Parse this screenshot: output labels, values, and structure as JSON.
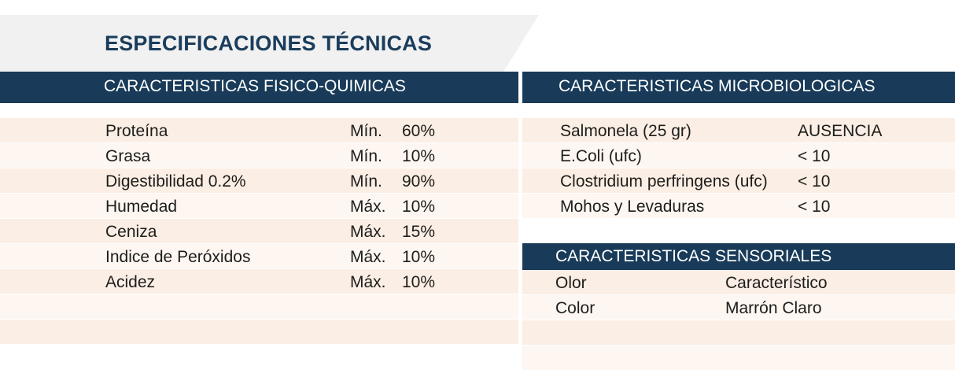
{
  "title": "ESPECIFICACIONES TÉCNICAS",
  "fisico_quimicas": {
    "header": "CARACTERISTICAS FISICO-QUIMICAS",
    "rows": [
      {
        "name": "Proteína",
        "qualifier": "Mín.",
        "value": "60%"
      },
      {
        "name": "Grasa",
        "qualifier": "Mín.",
        "value": "10%"
      },
      {
        "name": "Digestibilidad 0.2%",
        "qualifier": "Mín.",
        "value": "90%"
      },
      {
        "name": "Humedad",
        "qualifier": "Máx.",
        "value": "10%"
      },
      {
        "name": "Ceniza",
        "qualifier": "Máx.",
        "value": "15%"
      },
      {
        "name": "Indice de Peróxidos",
        "qualifier": "Máx.",
        "value": "10%"
      },
      {
        "name": "Acidez",
        "qualifier": "Máx.",
        "value": "10%"
      }
    ]
  },
  "microbiologicas": {
    "header": "CARACTERISTICAS MICROBIOLOGICAS",
    "rows": [
      {
        "name": "Salmonela (25 gr)",
        "value": "AUSENCIA"
      },
      {
        "name": "E.Coli (ufc)",
        "value": "< 10"
      },
      {
        "name": "Clostridium perfringens (ufc)",
        "value": "< 10"
      },
      {
        "name": "Mohos y Levaduras",
        "value": "< 10"
      }
    ]
  },
  "sensoriales": {
    "header": "CARACTERISTICAS SENSORIALES",
    "rows": [
      {
        "name": "Olor",
        "value": "Característico"
      },
      {
        "name": "Color",
        "value": "Marrón Claro"
      }
    ]
  }
}
